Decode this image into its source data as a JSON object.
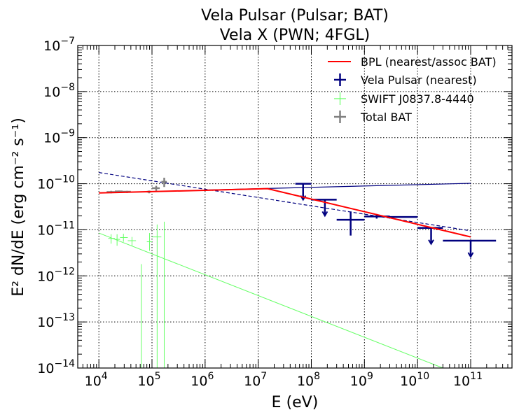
{
  "chart_data": {
    "type": "scatter",
    "title_lines": [
      "Vela Pulsar (Pulsar; BAT)",
      "Vela X (PWN; 4FGL)"
    ],
    "xlabel": "E (eV)",
    "ylabel": "E² dN/dE (erg cm⁻² s⁻¹)",
    "xscale": "log",
    "yscale": "log",
    "xlim": [
      4000,
      600000000000
    ],
    "ylim": [
      1e-14,
      1e-07
    ],
    "grid": true,
    "legend_position": "top-right",
    "x_tick_labels": [
      {
        "value": 10000,
        "mantissa": "10",
        "exp": "4"
      },
      {
        "value": 100000,
        "mantissa": "10",
        "exp": "5"
      },
      {
        "value": 1000000,
        "mantissa": "10",
        "exp": "6"
      },
      {
        "value": 10000000,
        "mantissa": "10",
        "exp": "7"
      },
      {
        "value": 100000000,
        "mantissa": "10",
        "exp": "8"
      },
      {
        "value": 1000000000,
        "mantissa": "10",
        "exp": "9"
      },
      {
        "value": 10000000000,
        "mantissa": "10",
        "exp": "10"
      },
      {
        "value": 100000000000,
        "mantissa": "10",
        "exp": "11"
      }
    ],
    "y_tick_labels": [
      {
        "value": 1e-14,
        "mantissa": "10",
        "exp": "−14"
      },
      {
        "value": 1e-13,
        "mantissa": "10",
        "exp": "−13"
      },
      {
        "value": 1e-12,
        "mantissa": "10",
        "exp": "−12"
      },
      {
        "value": 1e-11,
        "mantissa": "10",
        "exp": "−11"
      },
      {
        "value": 1e-10,
        "mantissa": "10",
        "exp": "−10"
      },
      {
        "value": 1e-09,
        "mantissa": "10",
        "exp": "−9"
      },
      {
        "value": 1e-08,
        "mantissa": "10",
        "exp": "−8"
      },
      {
        "value": 1e-07,
        "mantissa": "10",
        "exp": "−7"
      }
    ],
    "colors": {
      "bpl": "#ff0000",
      "vela": "#00007f",
      "swift": "#66ff66",
      "total": "#808080"
    },
    "legend": [
      {
        "label": "BPL (nearest/assoc BAT)",
        "kind": "line",
        "color": "#ff0000"
      },
      {
        "label": "Vela Pulsar (nearest)",
        "kind": "cross",
        "color": "#00007f"
      },
      {
        "label": "SWIFT J0837.8-4440",
        "kind": "cross",
        "color": "#66ff66"
      },
      {
        "label": "Total BAT",
        "kind": "cross",
        "color": "#808080"
      }
    ],
    "series": [
      {
        "name": "BPL (nearest/assoc BAT)",
        "kind": "line",
        "points": [
          [
            10000,
            6.3e-11
          ],
          [
            1000000,
            7.2e-11
          ],
          [
            15000000,
            7.8e-11
          ],
          [
            100000000000,
            7e-12
          ]
        ]
      },
      {
        "kind": "model_line",
        "color": "#00007f",
        "style": "solid",
        "width": 1.2,
        "points": [
          [
            1000000,
            7.3e-11
          ],
          [
            100000000000,
            1.02e-10
          ]
        ]
      },
      {
        "kind": "model_line",
        "color": "#00007f",
        "style": "dashed",
        "width": 1.2,
        "points": [
          [
            10000,
            1.75e-10
          ],
          [
            100000000000,
            9.5e-12
          ]
        ]
      },
      {
        "kind": "model_line",
        "color": "#66ff66",
        "style": "solid",
        "width": 1,
        "points": [
          [
            10000,
            8.5e-12
          ],
          [
            30000000000,
            1e-14
          ]
        ]
      },
      {
        "name": "Vela Pulsar (nearest)",
        "kind": "errorbars",
        "color": "#00007f",
        "width": 2.5,
        "points": [
          {
            "x": 70000000,
            "xlo": 50000000,
            "xhi": 100000000,
            "y": 1e-10,
            "ul": true
          },
          {
            "x": 180000000,
            "xlo": 100000000,
            "xhi": 300000000,
            "y": 4.5e-11,
            "ul": true
          },
          {
            "x": 550000000,
            "xlo": 300000000,
            "xhi": 1000000000,
            "y": 1.65e-11,
            "ylo": 7.5e-12,
            "yhi": 2.5e-11
          },
          {
            "x": 1700000000,
            "xlo": 1000000000,
            "xhi": 3000000000,
            "y": 1.95e-11,
            "ylo": 1.75e-11,
            "yhi": 2.2e-11
          },
          {
            "x": 5500000000,
            "xlo": 3000000000,
            "xhi": 10000000000,
            "y": 1.9e-11,
            "ylo": 1.85e-11,
            "yhi": 1.97e-11
          },
          {
            "x": 18000000000,
            "xlo": 10000000000,
            "xhi": 30000000000,
            "y": 1.1e-11,
            "ul": true
          },
          {
            "x": 100000000000,
            "xlo": 30000000000,
            "xhi": 300000000000,
            "y": 5.8e-12,
            "ul": true
          }
        ]
      },
      {
        "name": "SWIFT J0837.8-4440",
        "kind": "errorbars",
        "color": "#66ff66",
        "width": 1,
        "points": [
          {
            "x": 17000,
            "xlo": 15000,
            "xhi": 20000,
            "y": 6.5e-12,
            "ylo": 5e-12,
            "yhi": 8e-12
          },
          {
            "x": 22000,
            "xlo": 20000,
            "xhi": 25000,
            "y": 6.2e-12,
            "ylo": 4.5e-12,
            "yhi": 8e-12
          },
          {
            "x": 29000,
            "xlo": 25000,
            "xhi": 35000,
            "y": 6.8e-12,
            "ylo": 5.5e-12,
            "yhi": 8.2e-12
          },
          {
            "x": 42000,
            "xlo": 35000,
            "xhi": 50000,
            "y": 5.8e-12,
            "ylo": 4.5e-12,
            "yhi": 7e-12
          },
          {
            "x": 63000,
            "xlo": 60000,
            "xhi": 67000,
            "y": 1e-14,
            "ylo": 1e-14,
            "yhi": 1.8e-12
          },
          {
            "x": 90000,
            "xlo": 80000,
            "xhi": 100000,
            "y": 5.5e-12,
            "ylo": 3.5e-12,
            "yhi": 8.5e-12
          },
          {
            "x": 125000,
            "xlo": 100000,
            "xhi": 150000,
            "y": 7e-12,
            "ylo": 1e-14,
            "yhi": 1.3e-11
          },
          {
            "x": 170000,
            "xlo": 165000,
            "xhi": 175000,
            "y": 1e-14,
            "ylo": 1e-14,
            "yhi": 1.5e-11
          }
        ]
      },
      {
        "name": "Total BAT",
        "kind": "errorbars",
        "color": "#808080",
        "width": 2.5,
        "points": [
          {
            "x": 17000,
            "xlo": 14000,
            "xhi": 20000,
            "y": 6.6e-11,
            "ylo": 6.2e-11,
            "yhi": 7e-11
          },
          {
            "x": 24000,
            "xlo": 20000,
            "xhi": 28000,
            "y": 6.8e-11,
            "ylo": 6.5e-11,
            "yhi": 7.1e-11
          },
          {
            "x": 34000,
            "xlo": 28000,
            "xhi": 40000,
            "y": 6.7e-11,
            "ylo": 6.3e-11,
            "yhi": 7e-11
          },
          {
            "x": 88000,
            "xlo": 80000,
            "xhi": 97000,
            "y": 6.7e-11,
            "ylo": 6.2e-11,
            "yhi": 7.1e-11
          },
          {
            "x": 120000,
            "xlo": 100000,
            "xhi": 140000,
            "y": 8e-11,
            "ylo": 7e-11,
            "yhi": 9e-11
          },
          {
            "x": 170000,
            "xlo": 150000,
            "xhi": 190000,
            "y": 1.1e-10,
            "ylo": 8.5e-11,
            "yhi": 1.35e-10
          }
        ]
      }
    ]
  }
}
